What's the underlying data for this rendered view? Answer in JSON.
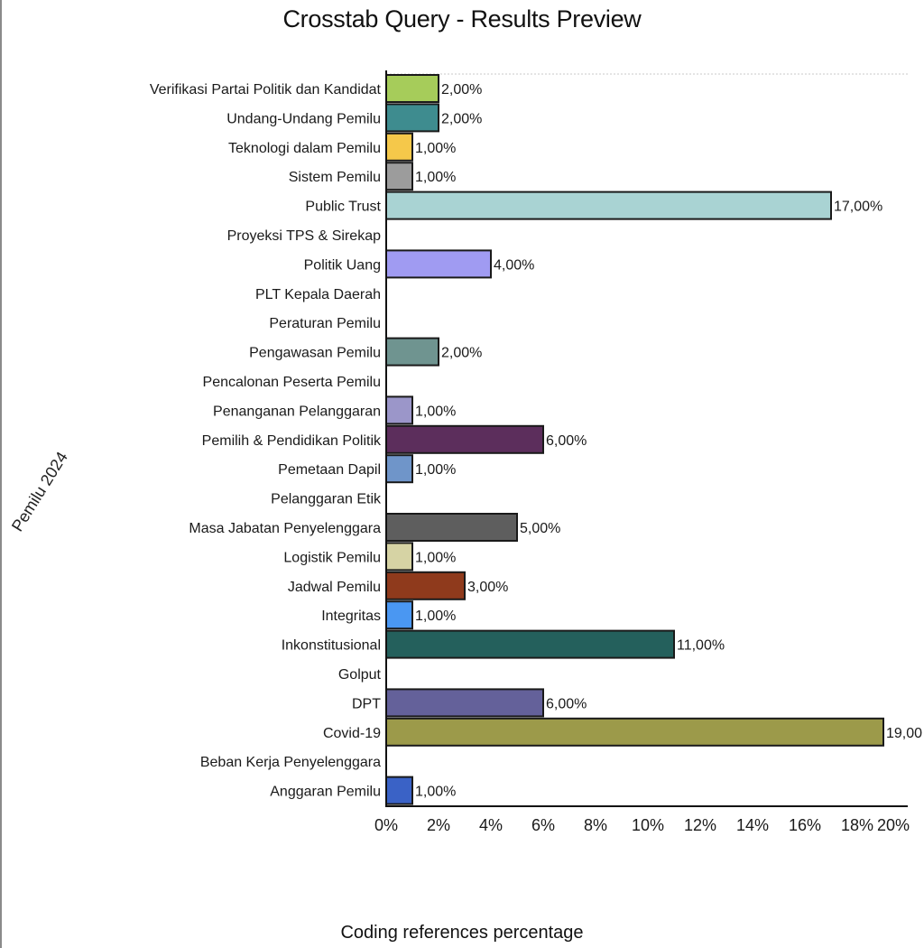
{
  "page": {
    "title": "Crosstab Query - Results Preview"
  },
  "chart_data": {
    "type": "bar",
    "orientation": "horizontal",
    "title": "Crosstab Query - Results Preview",
    "xlabel": "Coding references percentage",
    "ylabel": "Pemilu 2024",
    "xlim": [
      0,
      20
    ],
    "x_ticks": [
      "0%",
      "2%",
      "4%",
      "6%",
      "8%",
      "10%",
      "12%",
      "14%",
      "16%",
      "18%",
      "20%"
    ],
    "grid": false,
    "categories": [
      "Verifikasi Partai Politik dan Kandidat",
      "Undang-Undang Pemilu",
      "Teknologi dalam Pemilu",
      "Sistem Pemilu",
      "Public Trust",
      "Proyeksi TPS & Sirekap",
      "Politik Uang",
      "PLT Kepala Daerah",
      "Peraturan Pemilu",
      "Pengawasan Pemilu",
      "Pencalonan Peserta Pemilu",
      "Penanganan Pelanggaran",
      "Pemilih & Pendidikan Politik",
      "Pemetaan Dapil",
      "Pelanggaran Etik",
      "Masa Jabatan Penyelenggara",
      "Logistik Pemilu",
      "Jadwal Pemilu",
      "Integritas",
      "Inkonstitusional",
      "Golput",
      "DPT",
      "Covid-19",
      "Beban Kerja Penyelenggara",
      "Anggaran Pemilu"
    ],
    "values": [
      2,
      2,
      1,
      1,
      17,
      null,
      4,
      null,
      null,
      2,
      null,
      1,
      6,
      1,
      null,
      5,
      1,
      3,
      1,
      11,
      null,
      6,
      19,
      null,
      1
    ],
    "value_labels": [
      "2,00%",
      "2,00%",
      "1,00%",
      "1,00%",
      "17,00%",
      "",
      "4,00%",
      "",
      "",
      "2,00%",
      "",
      "1,00%",
      "6,00%",
      "1,00%",
      "",
      "5,00%",
      "1,00%",
      "3,00%",
      "1,00%",
      "11,00%",
      "",
      "6,00%",
      "19,00",
      "",
      "1,00%"
    ],
    "colors": [
      "#a6cc5a",
      "#3e8c8f",
      "#f5c84a",
      "#9c9c9c",
      "#a9d3d3",
      "",
      "#a09bf2",
      "",
      "",
      "#6f9490",
      "",
      "#9b96c9",
      "#5c2e5c",
      "#6f95c9",
      "",
      "#5e5e5e",
      "#d6d3a4",
      "#8f3a1c",
      "#4a97f2",
      "#24605c",
      "",
      "#64619a",
      "#9c9a4a",
      "",
      "#3a62c6"
    ]
  }
}
